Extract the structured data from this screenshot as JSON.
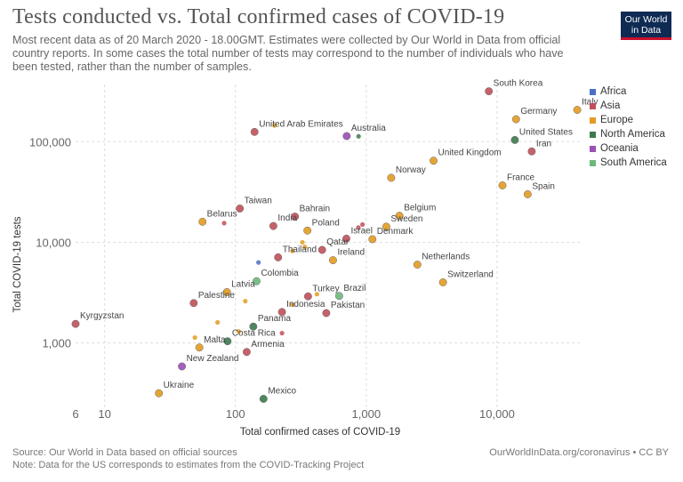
{
  "title": "Tests conducted vs. Total confirmed cases of COVID-19",
  "subtitle": "Most recent data as of 20 March 2020 - 18.00GMT. Estimates were collected by Our World in Data from official country reports. In some cases the total number of tests may correspond to the number of individuals who have been tested, rather than the number of samples.",
  "logo": {
    "line1": "Our World",
    "line2": "in Data"
  },
  "footer": {
    "source": "Source: Our World in Data based on official sources",
    "note": "Note: Data for the US corresponds to estimates from the COVID-Tracking Project",
    "url": "OurWorldInData.org/coronavirus • CC BY"
  },
  "legend": [
    {
      "name": "Africa",
      "color": "#4c6fc4"
    },
    {
      "name": "Asia",
      "color": "#c0505a"
    },
    {
      "name": "Europe",
      "color": "#e39c21"
    },
    {
      "name": "North America",
      "color": "#3d7a4e"
    },
    {
      "name": "Oceania",
      "color": "#9c4fb5"
    },
    {
      "name": "South America",
      "color": "#6bba7c"
    }
  ],
  "chart_data": {
    "type": "scatter",
    "title": "Tests conducted vs. Total confirmed cases of COVID-19",
    "xlabel": "Total confirmed cases of COVID-19",
    "ylabel": "Total COVID-19 tests",
    "x_scale": "log",
    "y_scale": "log",
    "xlim": [
      6,
      45000
    ],
    "ylim": [
      220,
      370000
    ],
    "x_ticks": [
      {
        "value": 6,
        "label": "6"
      },
      {
        "value": 10,
        "label": "10"
      },
      {
        "value": 100,
        "label": "100"
      },
      {
        "value": 1000,
        "label": "1,000"
      },
      {
        "value": 10000,
        "label": "10,000"
      }
    ],
    "y_ticks": [
      {
        "value": 1000,
        "label": "1,000"
      },
      {
        "value": 10000,
        "label": "10,000"
      },
      {
        "value": 100000,
        "label": "100,000"
      }
    ],
    "grid": true,
    "legend_position": "right",
    "points": [
      {
        "label": "South Korea",
        "region": "Asia",
        "x": 8652,
        "y": 316664
      },
      {
        "label": "Italy",
        "region": "Europe",
        "x": 41035,
        "y": 206886
      },
      {
        "label": "Germany",
        "region": "Europe",
        "x": 13979,
        "y": 167000
      },
      {
        "label": "United Arab Emirates",
        "region": "Asia",
        "x": 140,
        "y": 125000
      },
      {
        "label": "Australia",
        "region": "Oceania",
        "x": 709,
        "y": 113615
      },
      {
        "label": "United States",
        "region": "North America",
        "x": 13677,
        "y": 103945
      },
      {
        "label": "Iran",
        "region": "Asia",
        "x": 18407,
        "y": 80000
      },
      {
        "label": "United Kingdom",
        "region": "Europe",
        "x": 3269,
        "y": 64621
      },
      {
        "label": "Norway",
        "region": "Europe",
        "x": 1552,
        "y": 43735
      },
      {
        "label": "France",
        "region": "Europe",
        "x": 10995,
        "y": 36747
      },
      {
        "label": "Spain",
        "region": "Europe",
        "x": 17147,
        "y": 30000
      },
      {
        "label": "Taiwan",
        "region": "Asia",
        "x": 108,
        "y": 21640
      },
      {
        "label": "Bahrain",
        "region": "Asia",
        "x": 285,
        "y": 18000
      },
      {
        "label": "Belgium",
        "region": "Europe",
        "x": 1795,
        "y": 18360
      },
      {
        "label": "Belarus",
        "region": "Europe",
        "x": 56,
        "y": 16000
      },
      {
        "label": "India",
        "region": "Asia",
        "x": 195,
        "y": 14514
      },
      {
        "label": "Sweden",
        "region": "Europe",
        "x": 1423,
        "y": 14300
      },
      {
        "label": "Poland",
        "region": "Europe",
        "x": 355,
        "y": 13072
      },
      {
        "label": "Israel",
        "region": "Asia",
        "x": 705,
        "y": 10864
      },
      {
        "label": "Denmark",
        "region": "Europe",
        "x": 1115,
        "y": 10730
      },
      {
        "label": "Qatar",
        "region": "Asia",
        "x": 460,
        "y": 8400
      },
      {
        "label": "Thailand",
        "region": "Asia",
        "x": 212,
        "y": 7084
      },
      {
        "label": "Ireland",
        "region": "Europe",
        "x": 557,
        "y": 6636
      },
      {
        "label": "Netherlands",
        "region": "Europe",
        "x": 2460,
        "y": 6000
      },
      {
        "label": "Switzerland",
        "region": "Europe",
        "x": 3863,
        "y": 4000
      },
      {
        "label": "Colombia",
        "region": "South America",
        "x": 145,
        "y": 4103
      },
      {
        "label": "Latvia",
        "region": "Europe",
        "x": 86,
        "y": 3197
      },
      {
        "label": "Turkey",
        "region": "Asia",
        "x": 359,
        "y": 2900
      },
      {
        "label": "Brazil",
        "region": "South America",
        "x": 621,
        "y": 2927
      },
      {
        "label": "Palestine",
        "region": "Asia",
        "x": 48,
        "y": 2488
      },
      {
        "label": "Indonesia",
        "region": "Asia",
        "x": 227,
        "y": 2028
      },
      {
        "label": "Pakistan",
        "region": "Asia",
        "x": 495,
        "y": 1979
      },
      {
        "label": "Kyrgyzstan",
        "region": "Asia",
        "x": 6,
        "y": 1545
      },
      {
        "label": "Panama",
        "region": "North America",
        "x": 137,
        "y": 1453
      },
      {
        "label": "Costa Rica",
        "region": "North America",
        "x": 87,
        "y": 1039
      },
      {
        "label": "Malta",
        "region": "Europe",
        "x": 53,
        "y": 900
      },
      {
        "label": "Armenia",
        "region": "Asia",
        "x": 122,
        "y": 813
      },
      {
        "label": "New Zealand",
        "region": "Oceania",
        "x": 39,
        "y": 584
      },
      {
        "label": "Ukraine",
        "region": "Europe",
        "x": 26,
        "y": 316
      },
      {
        "label": "Mexico",
        "region": "North America",
        "x": 164,
        "y": 278
      }
    ],
    "unlabeled_points": [
      {
        "region": "Europe",
        "x": 199,
        "y": 145000
      },
      {
        "region": "North America",
        "x": 874,
        "y": 113000
      },
      {
        "region": "Asia",
        "x": 82,
        "y": 15500
      },
      {
        "region": "Asia",
        "x": 871,
        "y": 14000
      },
      {
        "region": "Asia",
        "x": 936,
        "y": 15000
      },
      {
        "region": "Europe",
        "x": 325,
        "y": 10000
      },
      {
        "region": "Europe",
        "x": 339,
        "y": 9000
      },
      {
        "region": "Europe",
        "x": 273,
        "y": 8200
      },
      {
        "region": "Africa",
        "x": 150,
        "y": 6300
      },
      {
        "region": "Europe",
        "x": 119,
        "y": 2600
      },
      {
        "region": "Europe",
        "x": 273,
        "y": 2400
      },
      {
        "region": "Europe",
        "x": 420,
        "y": 3050
      },
      {
        "region": "Europe",
        "x": 73,
        "y": 1600
      },
      {
        "region": "Europe",
        "x": 106,
        "y": 1300
      },
      {
        "region": "Asia",
        "x": 227,
        "y": 1250
      },
      {
        "region": "Europe",
        "x": 49,
        "y": 1130
      }
    ]
  }
}
